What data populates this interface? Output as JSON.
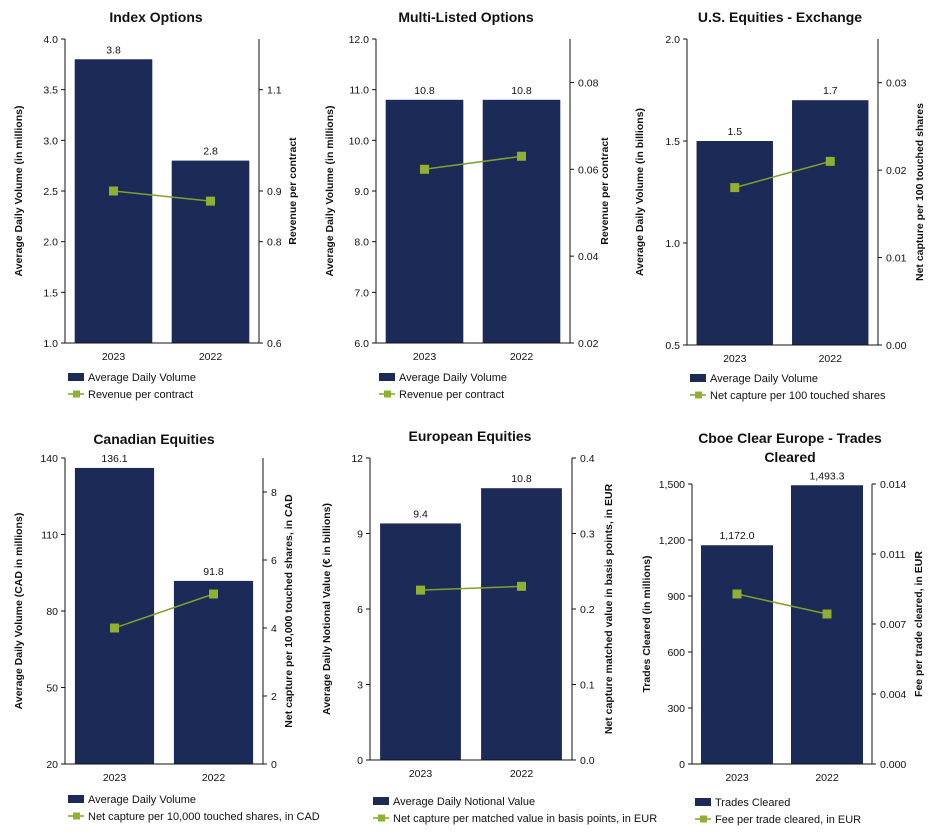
{
  "colors": {
    "bar": "#1c2a57",
    "line": "#7fa02f",
    "marker": "#8fb030",
    "axis": "#111111"
  },
  "chart_data": [
    {
      "type": "bar",
      "title": [
        "Index Options"
      ],
      "categories": [
        "2023",
        "2022"
      ],
      "values": [
        3.8,
        2.8
      ],
      "value_labels": [
        "3.8",
        "2.8"
      ],
      "ylabel": "Average Daily Volume (in millions)",
      "ylim": [
        1.0,
        4.0
      ],
      "yticks": [
        "1.0",
        "1.5",
        "2.0",
        "2.5",
        "3.0",
        "3.5",
        "4.0"
      ],
      "y2label": "Revenue per contract",
      "y2lim": [
        0.6,
        1.2
      ],
      "y2ticks": [
        {
          "v": 0.6,
          "t": "0.6"
        },
        {
          "v": 0.8,
          "t": "0.8"
        },
        {
          "v": 0.9,
          "t": "0.9"
        },
        {
          "v": 1.1,
          "t": "1.1"
        }
      ],
      "line_values": [
        0.9,
        0.88
      ],
      "legend": [
        "Average Daily Volume",
        "Revenue per contract"
      ]
    },
    {
      "type": "bar",
      "title": [
        "Multi-Listed Options"
      ],
      "categories": [
        "2023",
        "2022"
      ],
      "values": [
        10.8,
        10.8
      ],
      "value_labels": [
        "10.8",
        "10.8"
      ],
      "ylabel": "Average Daily Volume (in millions)",
      "ylim": [
        6.0,
        12.0
      ],
      "yticks": [
        "6.0",
        "7.0",
        "8.0",
        "9.0",
        "10.0",
        "11.0",
        "12.0"
      ],
      "y2label": "Revenue per contract",
      "y2lim": [
        0.02,
        0.09
      ],
      "y2ticks": [
        {
          "v": 0.02,
          "t": "0.02"
        },
        {
          "v": 0.04,
          "t": "0.04"
        },
        {
          "v": 0.06,
          "t": "0.06"
        },
        {
          "v": 0.08,
          "t": "0.08"
        }
      ],
      "line_values": [
        0.06,
        0.063
      ],
      "legend": [
        "Average Daily Volume",
        "Revenue per contract"
      ]
    },
    {
      "type": "bar",
      "title": [
        "U.S. Equities - Exchange"
      ],
      "categories": [
        "2023",
        "2022"
      ],
      "values": [
        1.5,
        1.7
      ],
      "value_labels": [
        "1.5",
        "1.7"
      ],
      "ylabel": "Average Daily Volume (in billions)",
      "ylim": [
        0.5,
        2.0
      ],
      "yticks": [
        "0.5",
        "1.0",
        "1.5",
        "2.0"
      ],
      "y2label": "Net capture per 100 touched shares",
      "y2lim": [
        0.0,
        0.035
      ],
      "y2ticks": [
        {
          "v": 0.0,
          "t": "0.00"
        },
        {
          "v": 0.01,
          "t": "0.01"
        },
        {
          "v": 0.02,
          "t": "0.02"
        },
        {
          "v": 0.03,
          "t": "0.03"
        }
      ],
      "line_values": [
        0.018,
        0.021
      ],
      "legend": [
        "Average Daily Volume",
        "Net capture per 100 touched shares"
      ]
    },
    {
      "type": "bar",
      "title": [
        "Canadian Equities"
      ],
      "categories": [
        "2023",
        "2022"
      ],
      "values": [
        136.1,
        91.8
      ],
      "value_labels": [
        "136.1",
        "91.8"
      ],
      "ylabel": "Average Daily Volume  (CAD in millions)",
      "ylim": [
        20,
        140
      ],
      "yticks": [
        "20",
        "50",
        "80",
        "110",
        "140"
      ],
      "y2label": "Net capture per 10,000 touched shares, in CAD",
      "y2lim": [
        0,
        9
      ],
      "y2ticks": [
        {
          "v": 0,
          "t": "0"
        },
        {
          "v": 2,
          "t": "2"
        },
        {
          "v": 4,
          "t": "4"
        },
        {
          "v": 6,
          "t": "6"
        },
        {
          "v": 8,
          "t": "8"
        }
      ],
      "line_values": [
        4.0,
        5.0
      ],
      "legend": [
        "Average Daily Volume",
        "Net capture per 10,000 touched shares, in CAD"
      ]
    },
    {
      "type": "bar",
      "title": [
        "European Equities"
      ],
      "categories": [
        "2023",
        "2022"
      ],
      "values": [
        9.4,
        10.8
      ],
      "value_labels": [
        "9.4",
        "10.8"
      ],
      "ylabel": "Average Daily Notional Value (€ in billions)",
      "ylim": [
        0,
        12
      ],
      "yticks": [
        "0",
        "3",
        "6",
        "9",
        "12"
      ],
      "y2label": "Net capture matched value in basis points, in EUR",
      "y2lim": [
        0.0,
        0.4
      ],
      "y2ticks": [
        {
          "v": 0.0,
          "t": "0.0"
        },
        {
          "v": 0.1,
          "t": "0.1"
        },
        {
          "v": 0.2,
          "t": "0.2"
        },
        {
          "v": 0.3,
          "t": "0.3"
        },
        {
          "v": 0.4,
          "t": "0.4"
        }
      ],
      "line_values": [
        0.225,
        0.23
      ],
      "legend": [
        "Average Daily Notional Value",
        "Net capture per matched value in basis points, in EUR"
      ]
    },
    {
      "type": "bar",
      "title": [
        "Cboe Clear Europe - Trades",
        "Cleared"
      ],
      "categories": [
        "2023",
        "2022"
      ],
      "values": [
        1172.0,
        1493.3
      ],
      "value_labels": [
        "1,172.0",
        "1,493.3"
      ],
      "ylabel": "Trades Cleared (in millions)",
      "ylim": [
        0,
        1500
      ],
      "yticks": [
        "0",
        "300",
        "600",
        "900",
        "1,200",
        "1,500"
      ],
      "y2label": "Fee per trade cleared, in EUR",
      "y2lim": [
        0.0,
        0.014
      ],
      "y2ticks": [
        {
          "v": 0.0,
          "t": "0.000"
        },
        {
          "v": 0.0035,
          "t": "0.004"
        },
        {
          "v": 0.007,
          "t": "0.007"
        },
        {
          "v": 0.0105,
          "t": "0.011"
        },
        {
          "v": 0.014,
          "t": "0.014"
        }
      ],
      "line_values": [
        0.0085,
        0.0075
      ],
      "legend": [
        "Trades Cleared",
        "Fee per trade cleared, in EUR"
      ]
    }
  ]
}
